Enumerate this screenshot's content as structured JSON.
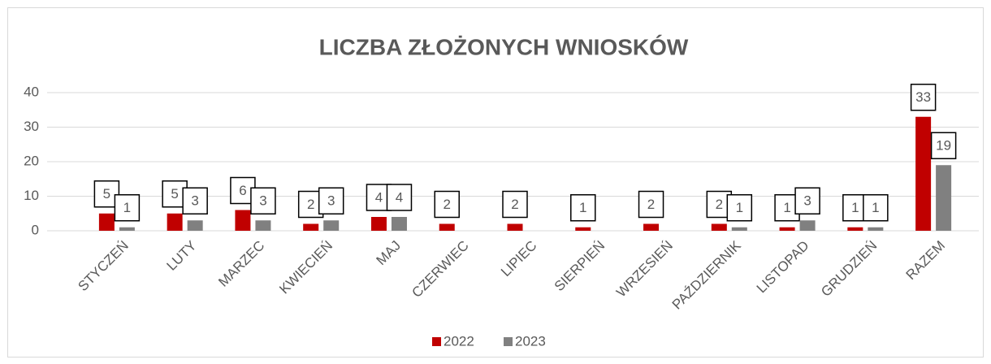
{
  "chart_data": {
    "type": "bar",
    "title": "LICZBA ZŁOŻONYCH WNIOSKÓW",
    "categories": [
      "STYCZEŃ",
      "LUTY",
      "MARZEC",
      "KWIECIEŃ",
      "MAJ",
      "CZERWIEC",
      "LIPIEC",
      "SIERPIEŃ",
      "WRZESIEŃ",
      "PAŹDZIERNIK",
      "LISTOPAD",
      "GRUDZIEŃ",
      "RAZEM"
    ],
    "series": [
      {
        "name": "2022",
        "color": "#c00000",
        "values": [
          5,
          5,
          6,
          2,
          4,
          2,
          2,
          1,
          2,
          2,
          1,
          1,
          33
        ]
      },
      {
        "name": "2023",
        "color": "#808080",
        "values": [
          1,
          3,
          3,
          3,
          4,
          null,
          null,
          null,
          null,
          1,
          3,
          1,
          19
        ]
      }
    ],
    "ylim": [
      0,
      40
    ],
    "yticks": [
      0,
      10,
      20,
      30,
      40
    ],
    "grid": true,
    "legend": "bottom"
  }
}
